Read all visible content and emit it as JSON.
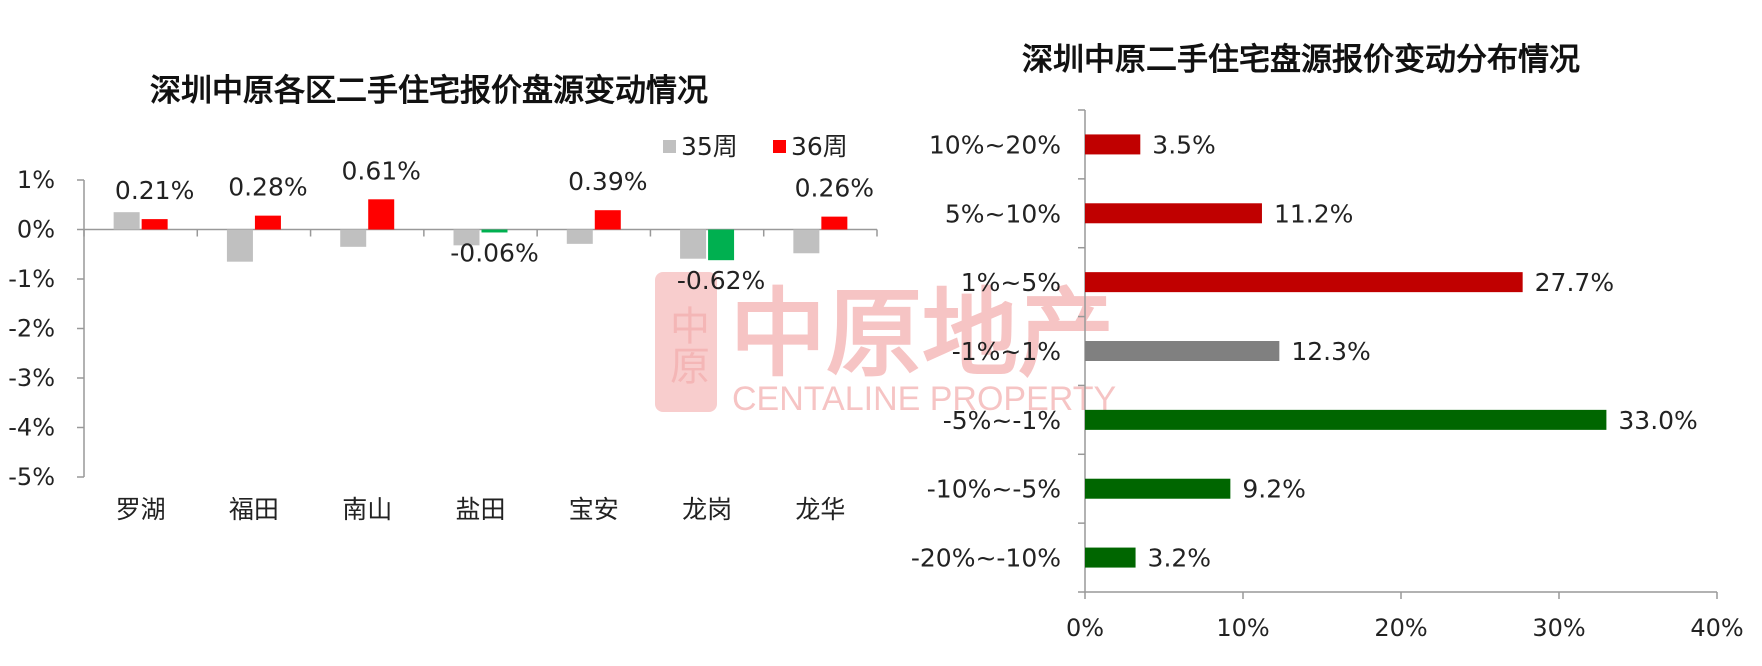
{
  "watermark": {
    "brand_cn": "中原地产",
    "brand_en": "CENTALINE PROPERTY",
    "seal_chars": "中原",
    "color": "#f4b6b6"
  },
  "chart_data": [
    {
      "type": "bar",
      "title": "深圳中原各区二手住宅报价盘源变动情况",
      "categories": [
        "罗湖",
        "福田",
        "南山",
        "盐田",
        "宝安",
        "龙岗",
        "龙华"
      ],
      "series": [
        {
          "name": "35周",
          "color": "#c0c0c0",
          "values": [
            0.0035,
            -0.0065,
            -0.0035,
            -0.0032,
            -0.0029,
            -0.0059,
            -0.0048
          ]
        },
        {
          "name": "36周",
          "color": "#ff0000",
          "values": [
            0.0021,
            0.0028,
            0.0061,
            -0.0006,
            0.0039,
            -0.0062,
            0.0026
          ],
          "labels": [
            "0.21%",
            "0.28%",
            "0.61%",
            "-0.06%",
            "0.39%",
            "-0.62%",
            "0.26%"
          ],
          "negative_color": "#00b050"
        }
      ],
      "ylim": [
        -0.05,
        0.01
      ],
      "yticks": [
        0.01,
        0,
        -0.01,
        -0.02,
        -0.03,
        -0.04,
        -0.05
      ],
      "ytick_labels": [
        "1%",
        "0%",
        "-1%",
        "-2%",
        "-3%",
        "-4%",
        "-5%"
      ],
      "legend": "top-right",
      "grid": false
    },
    {
      "type": "bar",
      "orientation": "horizontal",
      "title": "深圳中原二手住宅盘源报价变动分布情况",
      "categories": [
        "10%~20%",
        "5%~10%",
        "1%~5%",
        "-1%~1%",
        "-5%~-1%",
        "-10%~-5%",
        "-20%~-10%"
      ],
      "values": [
        0.035,
        0.112,
        0.277,
        0.123,
        0.33,
        0.092,
        0.032
      ],
      "labels": [
        "3.5%",
        "11.2%",
        "27.7%",
        "12.3%",
        "33.0%",
        "9.2%",
        "3.2%"
      ],
      "colors": [
        "#c00000",
        "#c00000",
        "#c00000",
        "#808080",
        "#006600",
        "#006600",
        "#006600"
      ],
      "xlim": [
        0,
        0.4
      ],
      "xticks": [
        0,
        0.1,
        0.2,
        0.3,
        0.4
      ],
      "xtick_labels": [
        "0%",
        "10%",
        "20%",
        "30%",
        "40%"
      ],
      "grid": false
    }
  ]
}
